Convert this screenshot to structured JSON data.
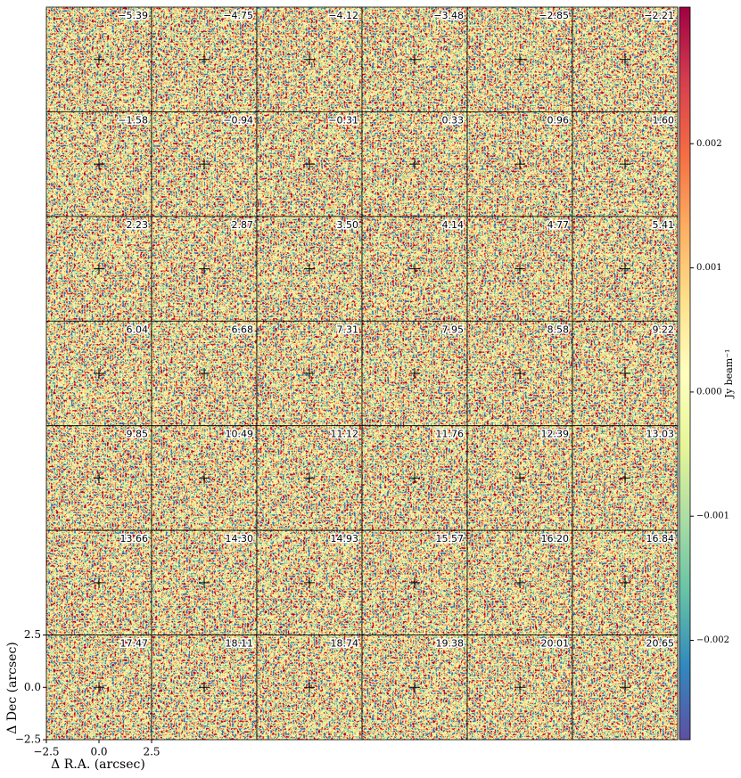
{
  "chart_data": {
    "type": "channel_map",
    "panels": [
      "−5.39",
      "−4.75",
      "−4.12",
      "−3.48",
      "−2.85",
      "−2.21",
      "−1.58",
      "−0.94",
      "−0.31",
      "0.33",
      "0.96",
      "1.60",
      "2.23",
      "2.87",
      "3.50",
      "4.14",
      "4.77",
      "5.41",
      "6.04",
      "6.68",
      "7.31",
      "7.95",
      "8.58",
      "9.22",
      "9.85",
      "10.49",
      "11.12",
      "11.76",
      "12.39",
      "13.03",
      "13.66",
      "14.30",
      "14.93",
      "15.57",
      "16.20",
      "16.84",
      "17.47",
      "18.11",
      "18.74",
      "19.38",
      "20.01",
      "20.65"
    ],
    "columns": 6,
    "xlabel": "Δ R.A. (arcsec)",
    "ylabel": "Δ Dec (arcsec)",
    "xlim": [
      -2.5,
      2.5
    ],
    "ylim": [
      -2.5,
      2.5
    ],
    "xticks": [
      {
        "value": -2.5,
        "label": "−2.5"
      },
      {
        "value": 0,
        "label": "0.0"
      },
      2.5
    ],
    "yticks": [
      {
        "value": -2.5,
        "label": "−2.5"
      },
      {
        "value": 0,
        "label": "0.0"
      },
      2.5
    ],
    "colorbar_label": "Jy beam⁻¹",
    "clim": [
      -0.0028,
      0.0031
    ],
    "cticks": [
      0.002,
      0.001,
      {
        "value": 0,
        "label": "0.000"
      },
      {
        "value": -0.001,
        "label": "−0.001"
      },
      {
        "value": -0.002,
        "label": "−0.002"
      }
    ]
  }
}
